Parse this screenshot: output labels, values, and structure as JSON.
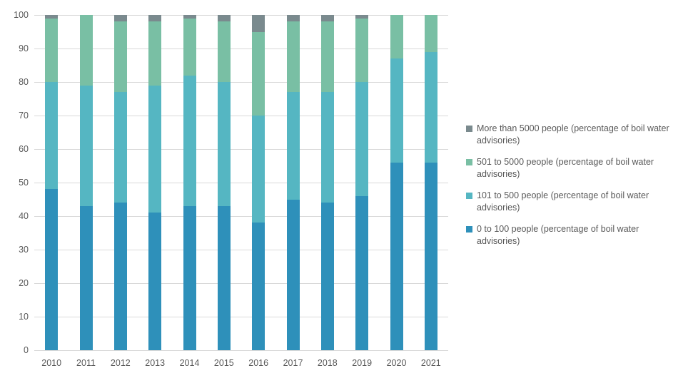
{
  "chart_data": {
    "type": "bar",
    "stacked": true,
    "title": "",
    "categories": [
      "2010",
      "2011",
      "2012",
      "2013",
      "2014",
      "2015",
      "2016",
      "2017",
      "2018",
      "2019",
      "2020",
      "2021"
    ],
    "series": [
      {
        "name": "0 to 100 people (percentage of boil water advisories)",
        "color": "#2E90BA",
        "values": [
          48,
          43,
          44,
          41,
          43,
          43,
          38,
          45,
          44,
          46,
          56,
          56
        ]
      },
      {
        "name": "101 to 500 people (percentage of boil water advisories)",
        "color": "#55B6C2",
        "values": [
          32,
          36,
          33,
          38,
          39,
          37,
          32,
          32,
          33,
          34,
          31,
          33
        ]
      },
      {
        "name": "501 to 5000 people (percentage of boil water advisories)",
        "color": "#79BFA4",
        "values": [
          19,
          21,
          21,
          19,
          17,
          18,
          25,
          21,
          21,
          19,
          13,
          11
        ]
      },
      {
        "name": "More than 5000 people (percentage of boil water advisories)",
        "color": "#7A8A8E",
        "values": [
          1,
          0,
          2,
          2,
          1,
          2,
          5,
          2,
          2,
          1,
          0,
          0
        ]
      }
    ],
    "legend": {
      "position": "right",
      "entries": [
        {
          "label": "More than 5000 people (percentage of boil water advisories)",
          "color": "#7A8A8E"
        },
        {
          "label": "501 to 5000 people (percentage of boil water advisories)",
          "color": "#79BFA4"
        },
        {
          "label": "101 to 500 people (percentage of boil water advisories)",
          "color": "#55B6C2"
        },
        {
          "label": "0 to 100 people (percentage of boil water advisories)",
          "color": "#2E90BA"
        }
      ]
    },
    "y_axis": {
      "min": 0,
      "max": 100,
      "tick_step": 10,
      "ticks": [
        0,
        10,
        20,
        30,
        40,
        50,
        60,
        70,
        80,
        90,
        100
      ]
    },
    "x_axis": {
      "label": ""
    },
    "grid": true,
    "colors": {
      "grid": "#D9D9D9",
      "axis_text": "#595959",
      "background": "#FFFFFF"
    }
  }
}
